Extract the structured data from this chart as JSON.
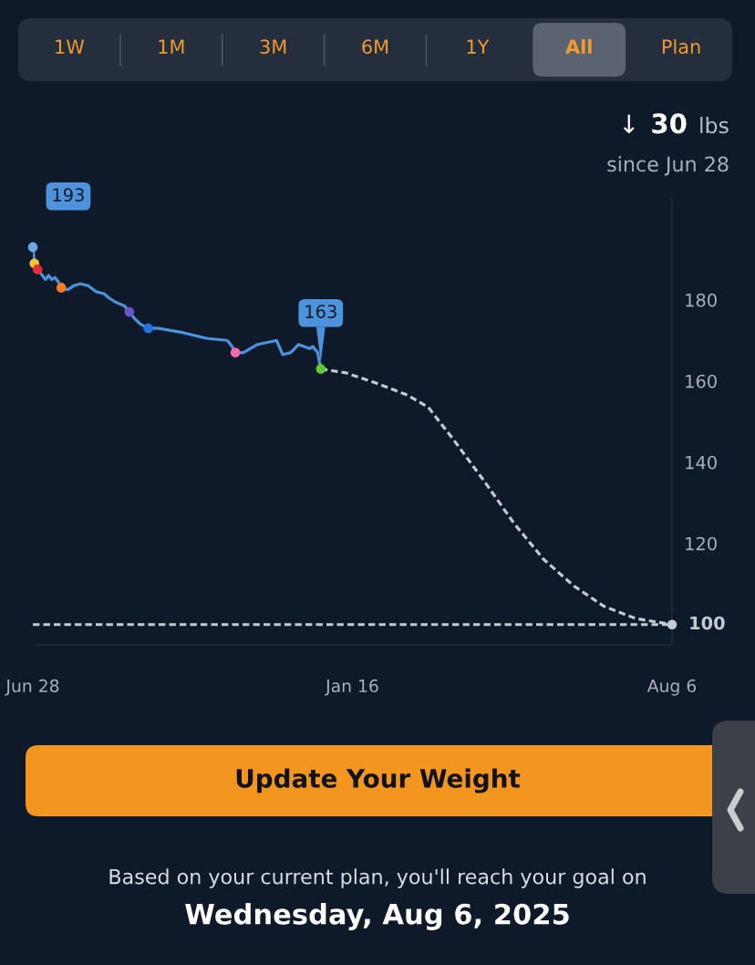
{
  "chart_data": {
    "type": "line",
    "xlim": [
      "2024-06-28",
      "2025-08-06"
    ],
    "ylim": [
      95,
      205
    ],
    "xticks": [
      {
        "value": "2024-06-28",
        "label": "Jun 28"
      },
      {
        "value": "2025-01-16",
        "label": "Jan 16"
      },
      {
        "value": "2025-08-06",
        "label": "Aug 6"
      }
    ],
    "yticks": [
      120,
      140,
      160,
      180
    ],
    "series": [
      {
        "color": "#4d93dc",
        "line_style": "solid",
        "marker": "none",
        "x": [
          "2024-06-28",
          "2024-06-29",
          "2024-07-01",
          "2024-07-04",
          "2024-07-06",
          "2024-07-08",
          "2024-07-10",
          "2024-07-12",
          "2024-07-14",
          "2024-07-16",
          "2024-07-20",
          "2024-07-24",
          "2024-07-28",
          "2024-08-02",
          "2024-08-07",
          "2024-08-12",
          "2024-08-15",
          "2024-08-19",
          "2024-08-25",
          "2024-08-28",
          "2024-08-31",
          "2024-09-04",
          "2024-09-09",
          "2024-09-15",
          "2024-09-30",
          "2024-10-16",
          "2024-10-29",
          "2024-11-01",
          "2024-11-03",
          "2024-11-08",
          "2024-11-17",
          "2024-11-29",
          "2024-12-03",
          "2024-12-08",
          "2024-12-13",
          "2024-12-20",
          "2024-12-22",
          "2024-12-25",
          "2024-12-27"
        ],
        "values": [
          193,
          189,
          187.5,
          186,
          185,
          186,
          185,
          185.5,
          184.5,
          183,
          182.5,
          183.5,
          184,
          183.5,
          182,
          181.5,
          180.5,
          179.5,
          178.5,
          177,
          175.5,
          174,
          173,
          173,
          172,
          170.5,
          170,
          168.5,
          167,
          167,
          169,
          170,
          166.5,
          167,
          169,
          168,
          168.5,
          167,
          163
        ]
      },
      {
        "color": "#c5c9d0",
        "line_style": "dashed",
        "marker": "none",
        "x": [
          "2024-12-27",
          "2025-01-12",
          "2025-01-31",
          "2025-02-20",
          "2025-03-05",
          "2025-03-21",
          "2025-04-09",
          "2025-04-28",
          "2025-05-17",
          "2025-06-05",
          "2025-06-24",
          "2025-07-14",
          "2025-08-06"
        ],
        "values": [
          163,
          162,
          159.5,
          156.5,
          153.5,
          145.5,
          135.5,
          125,
          116,
          109.5,
          104.5,
          101.5,
          100
        ]
      },
      {
        "type": "scatter",
        "marker": "circle",
        "x": [
          "2024-06-28",
          "2024-06-29",
          "2024-07-01",
          "2024-07-16",
          "2024-08-28",
          "2024-09-09",
          "2024-11-03",
          "2024-12-27",
          "2025-08-06"
        ],
        "values": [
          193,
          189,
          187.5,
          183,
          177,
          173,
          167,
          163,
          100
        ],
        "colors": [
          "#6aa7e6",
          "#f2c531",
          "#e5283b",
          "#f57c20",
          "#6657c9",
          "#1f72e0",
          "#f26aab",
          "#5dcb2b",
          "#c5c9d0"
        ]
      }
    ],
    "ref_lines": [
      {
        "axis": "y",
        "value": 100,
        "label": "100",
        "color": "#c5c9d0",
        "line_style": "dashed"
      }
    ],
    "annotations": [
      "1W",
      "1M",
      "3M",
      "6M",
      "1Y",
      "All",
      "Plan",
      "↓ 30 lbs",
      "since Jun 28",
      {
        "text": "193",
        "x": "2024-06-28",
        "y": 193
      },
      {
        "text": "163",
        "x": "2024-12-27",
        "y": 163
      },
      "Update Your Weight",
      "Based on your current plan, you'll reach your goal on",
      "Wednesday, Aug 6, 2025"
    ]
  }
}
